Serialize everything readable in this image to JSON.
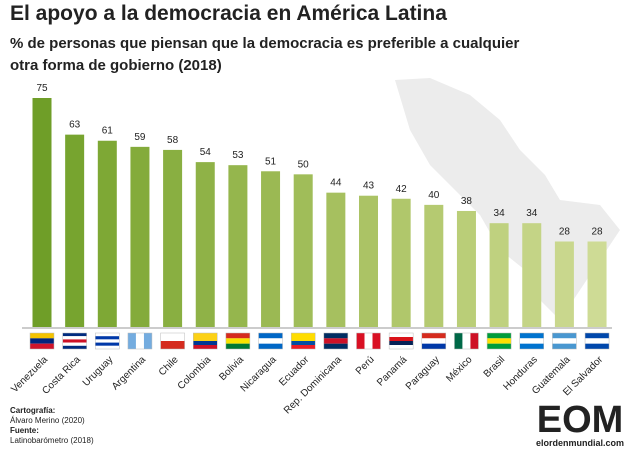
{
  "chart_data": {
    "type": "bar",
    "title": "El apoyo a la democracia en América Latina",
    "subtitle": [
      "% de personas que piensan que la democracia es preferible a cualquier",
      "otra forma de gobierno (2018)"
    ],
    "categories": [
      "Venezuela",
      "Costa Rica",
      "Uruguay",
      "Argentina",
      "Chile",
      "Colombia",
      "Bolivia",
      "Nicaragua",
      "Ecuador",
      "Rep. Dominicana",
      "Perú",
      "Panamá",
      "Paraguay",
      "México",
      "Brasil",
      "Honduras",
      "Guatemala",
      "El Salvador"
    ],
    "values": [
      75,
      63,
      61,
      59,
      58,
      54,
      53,
      51,
      50,
      44,
      43,
      42,
      40,
      38,
      34,
      34,
      28,
      28
    ],
    "colors": [
      "#6f9e28",
      "#77a42f",
      "#7ea835",
      "#84ab3b",
      "#89af41",
      "#8fb247",
      "#95b64d",
      "#9bb953",
      "#a0bd59",
      "#a6c05f",
      "#abc365",
      "#b0c76b",
      "#b5ca71",
      "#bace78",
      "#bfd17f",
      "#c4d486",
      "#c9d78d",
      "#cedb95"
    ],
    "footer": {
      "credit_label": "Cartografía:",
      "credit": "Álvaro Merino (2020)",
      "source_label": "Fuente:",
      "source": "Latinobarómetro (2018)"
    },
    "logo": {
      "mark": "EOM",
      "site": "elordenmundial.com"
    }
  }
}
